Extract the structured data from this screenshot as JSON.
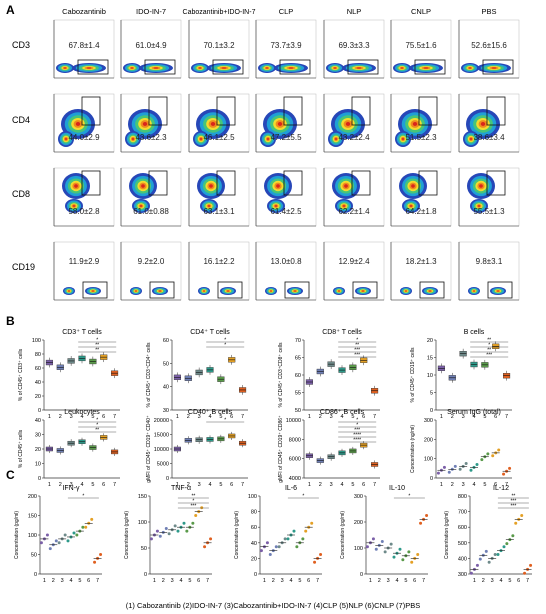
{
  "panel_labels": {
    "a": "A",
    "b": "B",
    "c": "C"
  },
  "columns": [
    "Cabozantinib",
    "IDO-IN-7",
    "Cabozantinib+IDO-IN-7",
    "CLP",
    "NLP",
    "CNLP",
    "PBS"
  ],
  "flow": {
    "rows": [
      {
        "label": "CD3",
        "values": [
          "67.8±1.4",
          "61.0±4.9",
          "70.1±3.2",
          "73.7±3.9",
          "69.3±3.3",
          "75.5±1.6",
          "52.6±15.6"
        ]
      },
      {
        "label": "CD4",
        "values": [
          "44.0±2.9",
          "43.6±2.3",
          "46.1±2.5",
          "47.2±5.5",
          "43.2±2.4",
          "51.5±2.3",
          "38.6±3.4"
        ]
      },
      {
        "label": "CD8",
        "values": [
          "58.0±2.8",
          "61.0±0.88",
          "63.1±3.1",
          "61.4±2.5",
          "62.2±1.4",
          "64.2±1.8",
          "55.5±1.3"
        ]
      },
      {
        "label": "CD19",
        "values": [
          "11.9±2.9",
          "9.2±2.0",
          "16.1±2.2",
          "13.0±0.8",
          "12.9±2.4",
          "18.2±1.3",
          "9.8±3.1"
        ]
      }
    ]
  },
  "chart_data": [
    {
      "type": "box",
      "title": "CD3⁺ T cells",
      "ylabel": "% of CD45⁺ CD3⁺ cells",
      "categories": [
        "1",
        "2",
        "3",
        "4",
        "5",
        "6",
        "7"
      ],
      "ylim": [
        0,
        100
      ],
      "yticks": [
        "0",
        "20",
        "40",
        "60",
        "80",
        "100"
      ],
      "values": [
        67.8,
        61.0,
        70.1,
        73.7,
        69.3,
        75.5,
        52.6
      ],
      "sig": [
        "*",
        "**",
        "**"
      ]
    },
    {
      "type": "box",
      "title": "CD4⁺ T cells",
      "ylabel": "% of CD45⁺ CD3⁺CD4⁺ cells",
      "categories": [
        "1",
        "2",
        "3",
        "4",
        "5",
        "6",
        "7"
      ],
      "ylim": [
        30,
        60
      ],
      "yticks": [
        "30",
        "40",
        "50",
        "60"
      ],
      "values": [
        44.0,
        43.6,
        46.1,
        47.2,
        43.2,
        51.5,
        38.6
      ],
      "sig": [
        "*",
        "*"
      ]
    },
    {
      "type": "box",
      "title": "CD8⁺ T cells",
      "ylabel": "% of CD45⁺ CD3⁺CD8⁺ cells",
      "categories": [
        "1",
        "2",
        "3",
        "4",
        "5",
        "6",
        "7"
      ],
      "ylim": [
        50,
        70
      ],
      "yticks": [
        "50",
        "55",
        "60",
        "65",
        "70"
      ],
      "values": [
        58.0,
        61.0,
        63.1,
        61.4,
        62.2,
        64.2,
        55.5
      ],
      "sig": [
        "*",
        "**",
        "***",
        "***"
      ]
    },
    {
      "type": "box",
      "title": "B cells",
      "ylabel": "% of CD45⁺ CD19⁺ cells",
      "categories": [
        "1",
        "2",
        "3",
        "4",
        "5",
        "6",
        "7"
      ],
      "ylim": [
        0,
        20
      ],
      "yticks": [
        "0",
        "5",
        "10",
        "15",
        "20"
      ],
      "values": [
        11.9,
        9.2,
        16.1,
        13.0,
        12.9,
        18.2,
        9.8
      ],
      "sig": [
        "**",
        "*",
        "**",
        "***"
      ]
    },
    {
      "type": "box",
      "title": "Leukocytes",
      "ylabel": "% of CD45⁺ cells",
      "categories": [
        "1",
        "2",
        "3",
        "4",
        "5",
        "6",
        "7"
      ],
      "ylim": [
        0,
        40
      ],
      "yticks": [
        "0",
        "10",
        "20",
        "30",
        "40"
      ],
      "values": [
        20,
        19,
        24,
        25,
        21,
        28,
        18
      ],
      "sig": [
        "*",
        "*",
        "**"
      ]
    },
    {
      "type": "box",
      "title": "CD40⁺ B cells",
      "ylabel": "gMFI of CD45⁺ CD19⁺ CD40⁺",
      "categories": [
        "1",
        "2",
        "3",
        "4",
        "5",
        "6",
        "7"
      ],
      "ylim": [
        0,
        20000
      ],
      "yticks": [
        "0",
        "5000",
        "10000",
        "15000",
        "20000"
      ],
      "values": [
        10000,
        13000,
        13200,
        13300,
        13500,
        14500,
        12000
      ],
      "sig": [
        "*"
      ]
    },
    {
      "type": "box",
      "title": "CD86⁺ B cells",
      "ylabel": "gMFI of CD45⁺ CD19⁺ CD86⁺",
      "categories": [
        "1",
        "2",
        "3",
        "4",
        "5",
        "6",
        "7"
      ],
      "ylim": [
        4000,
        10000
      ],
      "yticks": [
        "4000",
        "6000",
        "8000",
        "10000"
      ],
      "values": [
        6300,
        5800,
        6200,
        6600,
        6800,
        7400,
        5400
      ],
      "sig": [
        "*",
        "*",
        "***",
        "****",
        "****"
      ]
    },
    {
      "type": "scatter",
      "title": "Serum IgG (total)",
      "ylabel": "Concentration (ng/ml)",
      "categories": [
        "1",
        "2",
        "3",
        "4",
        "5",
        "6",
        "7"
      ],
      "ylim": [
        0,
        300
      ],
      "yticks": [
        "0",
        "100",
        "200",
        "300"
      ],
      "values": [
        40,
        45,
        60,
        55,
        110,
        130,
        35
      ]
    },
    {
      "type": "scatter",
      "title": "IFN-γ",
      "ylabel": "Concentration (pg/ml)",
      "categories": [
        "1",
        "2",
        "3",
        "4",
        "5",
        "6",
        "7"
      ],
      "ylim": [
        0,
        200
      ],
      "yticks": [
        "0",
        "50",
        "100",
        "150",
        "200"
      ],
      "values": [
        90,
        75,
        90,
        95,
        110,
        130,
        40
      ],
      "sig": [
        "*"
      ]
    },
    {
      "type": "scatter",
      "title": "TNF-α",
      "ylabel": "Concentration (pg/ml)",
      "categories": [
        "1",
        "2",
        "3",
        "4",
        "5",
        "6",
        "7"
      ],
      "ylim": [
        0,
        150
      ],
      "yticks": [
        "0",
        "50",
        "100",
        "150"
      ],
      "values": [
        75,
        80,
        85,
        90,
        90,
        120,
        60
      ],
      "sig": [
        "**",
        "*",
        "***"
      ]
    },
    {
      "type": "scatter",
      "title": "IL-6",
      "ylabel": "Concentration (pg/ml)",
      "categories": [
        "1",
        "2",
        "3",
        "4",
        "5",
        "6",
        "7"
      ],
      "ylim": [
        0,
        100
      ],
      "yticks": [
        "0",
        "20",
        "40",
        "60",
        "80",
        "100"
      ],
      "values": [
        35,
        30,
        40,
        50,
        40,
        60,
        20
      ],
      "sig": [
        "*"
      ]
    },
    {
      "type": "scatter",
      "title": "IL-10",
      "ylabel": "Concentration (pg/ml)",
      "categories": [
        "1",
        "2",
        "3",
        "4",
        "5",
        "6",
        "7"
      ],
      "ylim": [
        0,
        300
      ],
      "yticks": [
        "0",
        "100",
        "200",
        "300"
      ],
      "values": [
        120,
        110,
        100,
        80,
        70,
        60,
        210
      ],
      "sig": [
        "*"
      ]
    },
    {
      "type": "scatter",
      "title": "IL-12",
      "ylabel": "Concentration (pg/ml)",
      "categories": [
        "1",
        "2",
        "3",
        "4",
        "5",
        "6",
        "7"
      ],
      "ylim": [
        300,
        800
      ],
      "yticks": [
        "300",
        "400",
        "500",
        "600",
        "700",
        "800"
      ],
      "values": [
        330,
        420,
        400,
        450,
        520,
        650,
        330
      ],
      "sig": [
        "**",
        "***",
        "***"
      ]
    }
  ],
  "legend": "(1) Cabozantinib    (2)IDO-IN-7    (3)Cabozantinib+IDO-IN-7    (4)CLP    (5)NLP    (6)CNLP    (7)PBS",
  "group_colors": [
    "#7b5fa8",
    "#6f7fb5",
    "#6e8a8a",
    "#2e9a8a",
    "#5a9a4a",
    "#e4a025",
    "#e06020"
  ]
}
